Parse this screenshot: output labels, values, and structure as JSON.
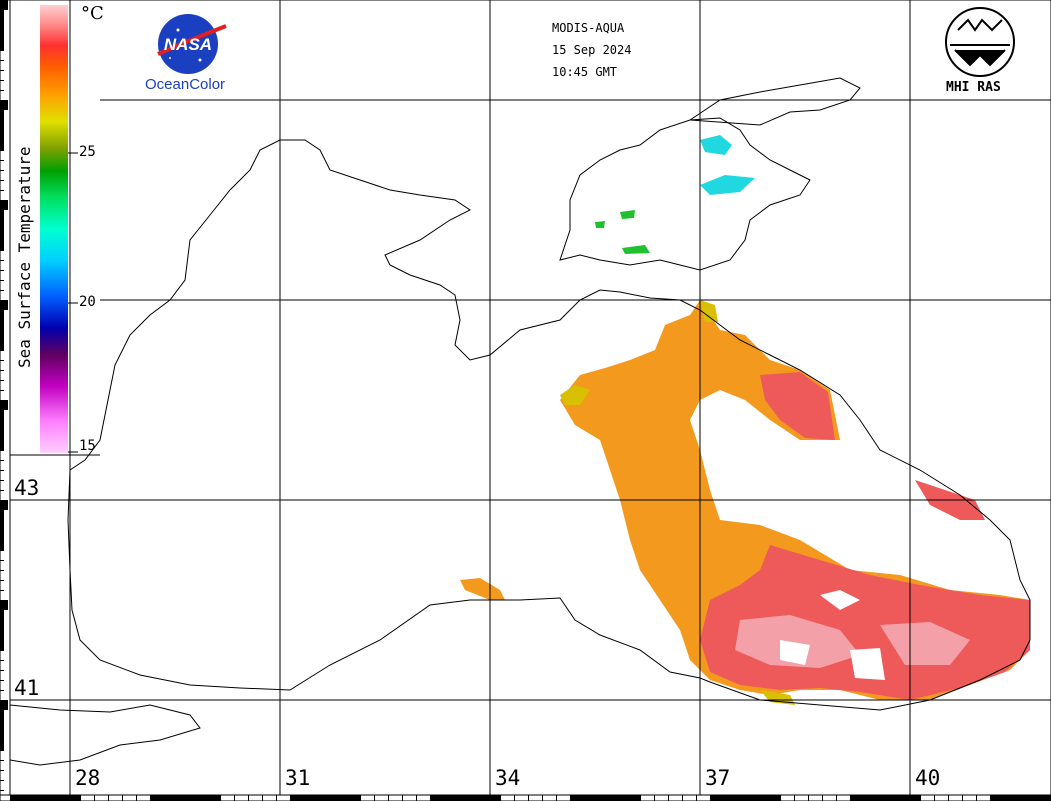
{
  "header": {
    "sensor": "MODIS-AQUA",
    "date": "15 Sep 2024",
    "time": "10:45 GMT"
  },
  "logos": {
    "nasa": {
      "text": "NASA",
      "caption": "OceanColor",
      "icon": "nasa-meatball-logo"
    },
    "mhi": {
      "caption": "MHI RAS",
      "icon": "mhi-ras-logo"
    }
  },
  "colorbar": {
    "title": "Sea Surface Temperature",
    "unit": "°C",
    "ticks": [
      "25",
      "20",
      "15"
    ],
    "range": [
      15,
      30
    ],
    "colors": [
      "#ffd0ff",
      "#ff80ff",
      "#c000c0",
      "#600060",
      "#0000b0",
      "#0060ff",
      "#00d0ff",
      "#00ffd0",
      "#00e060",
      "#00a000",
      "#80a000",
      "#e0e000",
      "#ffa000",
      "#ff6000",
      "#ff3030",
      "#ff8080",
      "#ffd0d0"
    ]
  },
  "grid": {
    "lat_labels": [
      "43",
      "41"
    ],
    "lon_labels": [
      "28",
      "31",
      "34",
      "37",
      "40"
    ]
  },
  "legend_note": {
    "colors": {
      "warm_orange": "#f39a1e",
      "hot_pink": "#ee5a5a",
      "light_pink": "#f4a0a8",
      "yellow": "#d8c000",
      "cyan": "#20d8e0",
      "green": "#20c030"
    }
  }
}
